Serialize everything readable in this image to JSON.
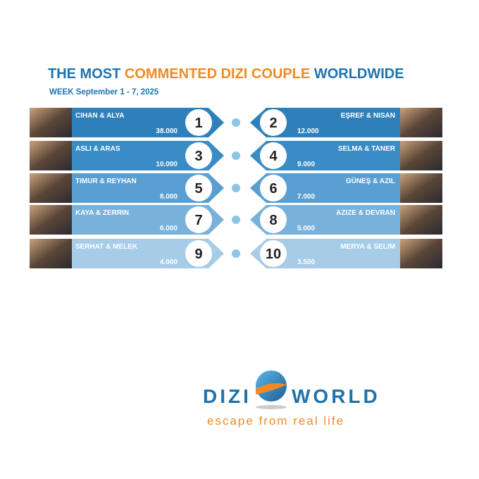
{
  "header": {
    "title_start": "THE MOST",
    "title_highlight": "COMMENTED DIZI COUPLE",
    "title_end": "WORLDWIDE",
    "week": "WEEK September 1 - 7, 2025"
  },
  "couples": [
    {
      "rank": "1",
      "name": "CIHAN & ALYA",
      "comments": "38.000"
    },
    {
      "rank": "2",
      "name": "EŞREF & NISAN",
      "comments": "12.000"
    },
    {
      "rank": "3",
      "name": "ASLI & ARAS",
      "comments": "10.000"
    },
    {
      "rank": "4",
      "name": "SELMA & TANER",
      "comments": "9.000"
    },
    {
      "rank": "5",
      "name": "TIMUR & REYHAN",
      "comments": "8.000"
    },
    {
      "rank": "6",
      "name": "GÜNEŞ & AZIL",
      "comments": "7.000"
    },
    {
      "rank": "7",
      "name": "KAYA & ZERRIN",
      "comments": "6.000"
    },
    {
      "rank": "8",
      "name": "AZIZE & DEVRAN",
      "comments": "5.000"
    },
    {
      "rank": "9",
      "name": "SERHAT & MELEK",
      "comments": "4.000"
    },
    {
      "rank": "10",
      "name": "MERYA & SELIM",
      "comments": "3.500"
    }
  ],
  "logo": {
    "left": "DIZI",
    "right": "WORLD",
    "tagline": "escape from real life"
  }
}
